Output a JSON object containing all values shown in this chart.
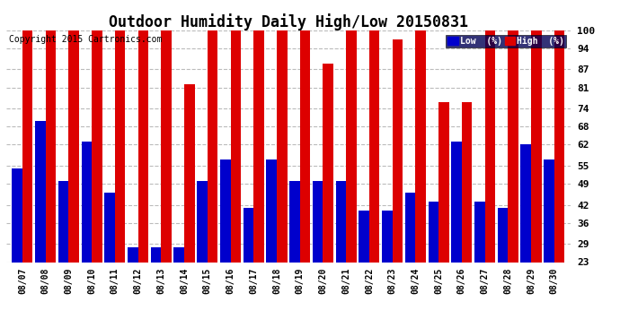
{
  "title": "Outdoor Humidity Daily High/Low 20150831",
  "copyright": "Copyright 2015 Cartronics.com",
  "dates": [
    "08/07",
    "08/08",
    "08/09",
    "08/10",
    "08/11",
    "08/12",
    "08/13",
    "08/14",
    "08/15",
    "08/16",
    "08/17",
    "08/18",
    "08/19",
    "08/20",
    "08/21",
    "08/22",
    "08/23",
    "08/24",
    "08/25",
    "08/26",
    "08/27",
    "08/28",
    "08/29",
    "08/30"
  ],
  "high": [
    100,
    100,
    100,
    100,
    100,
    100,
    100,
    82,
    100,
    100,
    100,
    100,
    100,
    89,
    100,
    100,
    97,
    100,
    76,
    76,
    100,
    100,
    100,
    100
  ],
  "low": [
    54,
    70,
    50,
    63,
    46,
    28,
    28,
    28,
    50,
    57,
    41,
    57,
    50,
    50,
    50,
    40,
    40,
    46,
    43,
    63,
    43,
    41,
    62,
    57
  ],
  "high_color": "#dd0000",
  "low_color": "#0000cc",
  "background_color": "#ffffff",
  "plot_bg_color": "#ffffff",
  "ylim": [
    23,
    100
  ],
  "yticks": [
    23,
    29,
    36,
    42,
    49,
    55,
    62,
    68,
    74,
    81,
    87,
    94,
    100
  ],
  "grid_color": "#bbbbbb",
  "title_fontsize": 12,
  "copyright_fontsize": 7,
  "legend_low_label": "Low  (%)",
  "legend_high_label": "High  (%)",
  "legend_bg": "#000055"
}
